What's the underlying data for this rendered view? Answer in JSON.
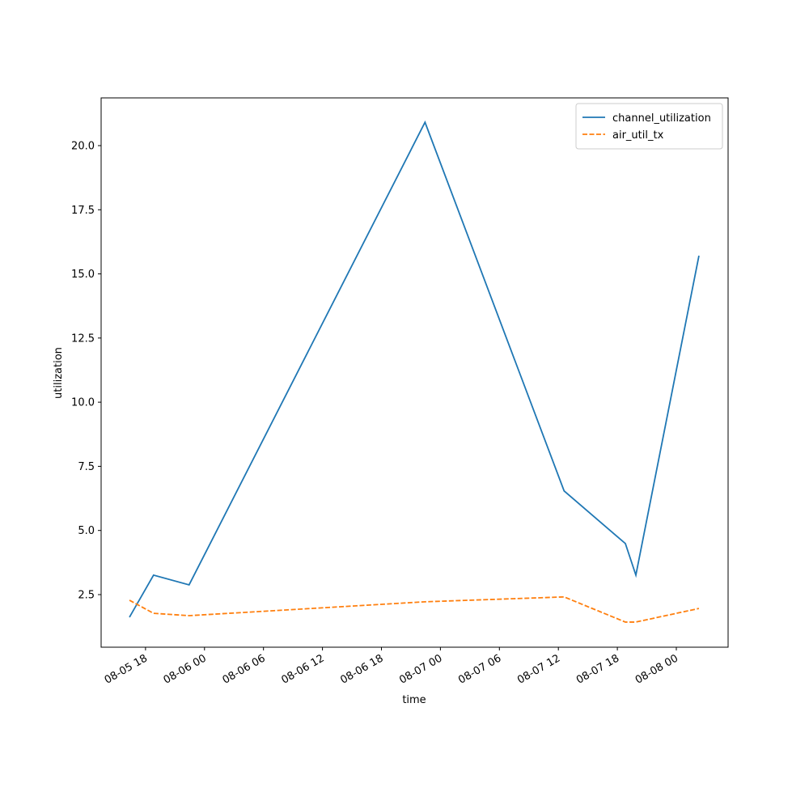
{
  "chart_data": {
    "type": "line",
    "x_label": "time",
    "y_label": "utilization",
    "x": [
      "08-05 16:22",
      "08-05 18:49",
      "08-05 22:26",
      "08-06 22:26",
      "08-07 12:35",
      "08-07 18:49",
      "08-07 19:53",
      "08-08 02:18"
    ],
    "series": [
      {
        "name": "channel_utilization",
        "color": "#1f77b4",
        "dash": "solid",
        "values": [
          1.62,
          3.26,
          2.88,
          20.91,
          6.54,
          4.49,
          3.26,
          15.71
        ]
      },
      {
        "name": "air_util_tx",
        "color": "#ff7f0e",
        "dash": "dashed",
        "values": [
          2.28,
          1.77,
          1.68,
          2.22,
          2.41,
          1.43,
          1.43,
          1.96
        ]
      }
    ],
    "xlim": [
      "08-05 13:29",
      "08-08 05:16"
    ],
    "xticks": [
      "08-05 18",
      "08-06 00",
      "08-06 06",
      "08-06 12",
      "08-06 18",
      "08-07 00",
      "08-07 06",
      "08-07 12",
      "08-07 18",
      "08-08 00"
    ],
    "ylim": [
      0.45,
      21.86
    ],
    "yticks": [
      2.5,
      {
        "value": 5,
        "label": "5.0"
      },
      7.5,
      {
        "value": 10,
        "label": "10.0"
      },
      12.5,
      {
        "value": 15,
        "label": "15.0"
      },
      17.5,
      {
        "value": 20,
        "label": "20.0"
      }
    ],
    "grid": false,
    "legend": "upper right"
  }
}
